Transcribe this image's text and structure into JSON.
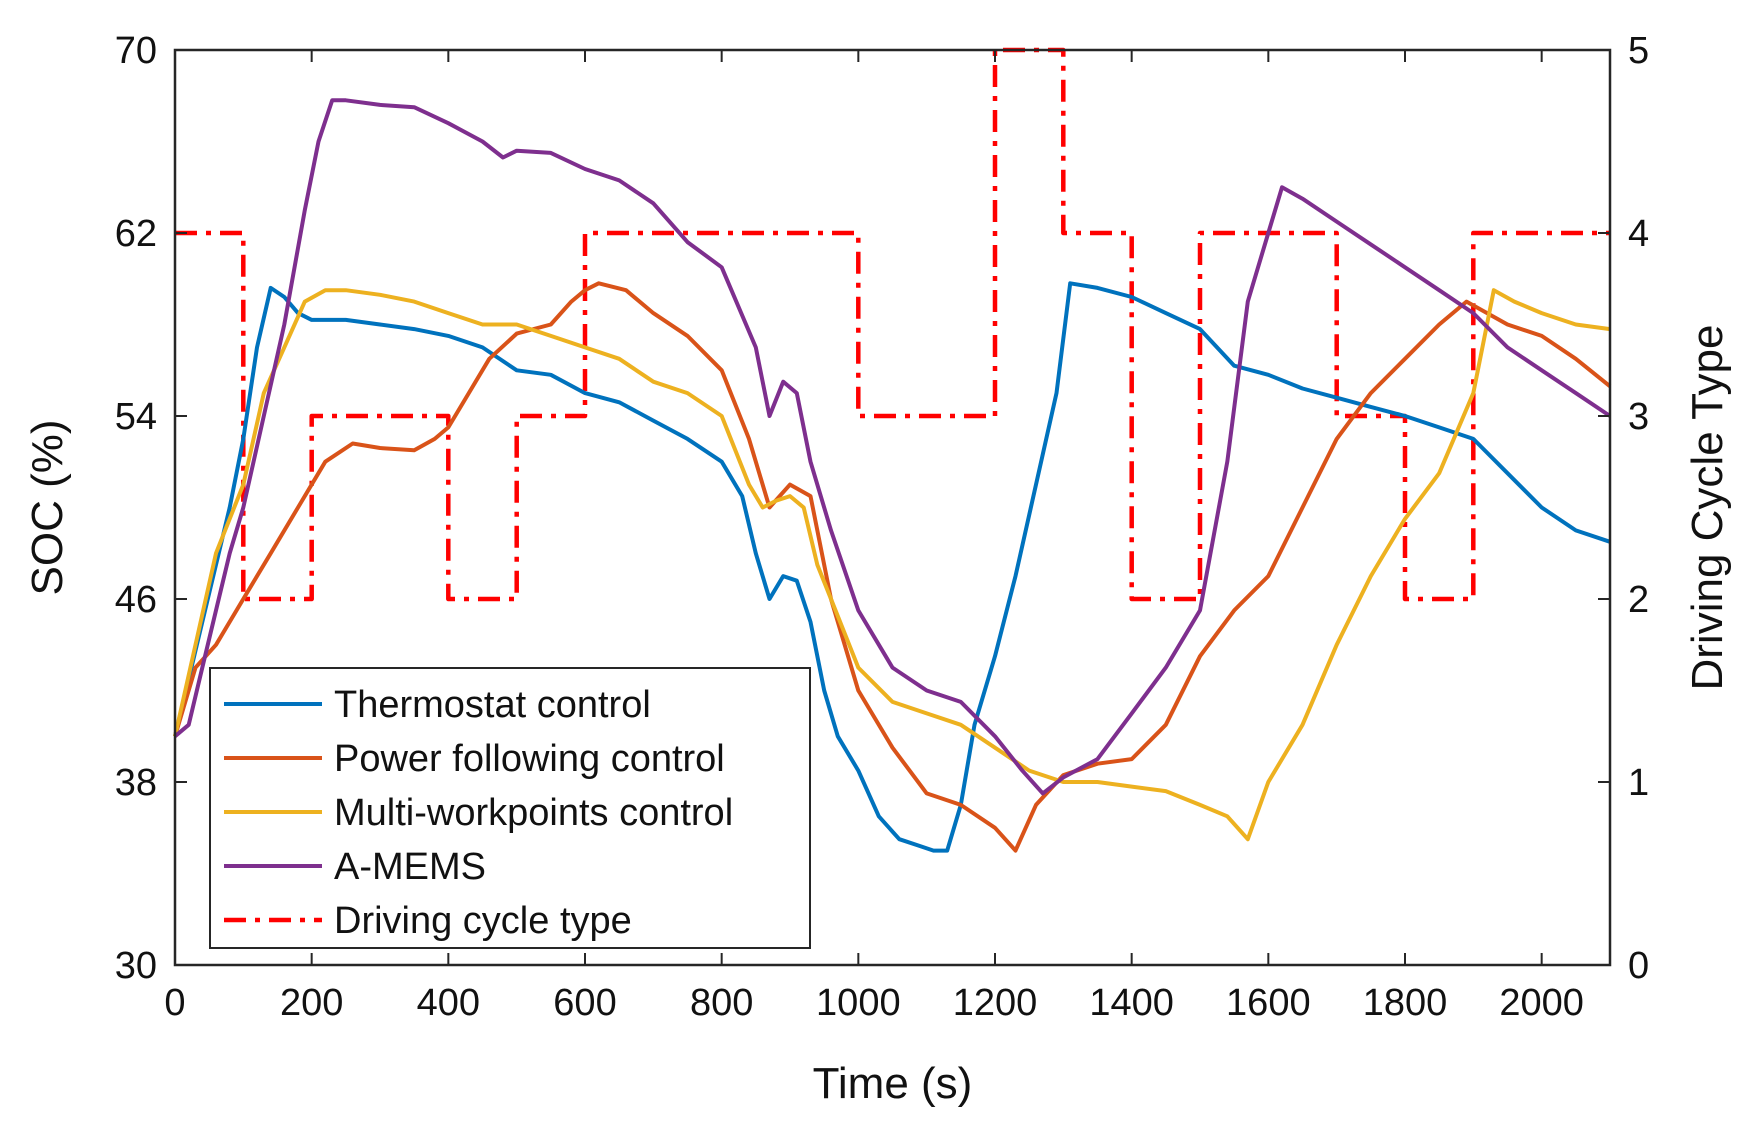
{
  "chart_data": {
    "type": "line",
    "xlabel": "Time (s)",
    "ylabel": "SOC (%)",
    "y2label": "Driving Cycle Type",
    "xlim": [
      0,
      2100
    ],
    "ylim": [
      30,
      70
    ],
    "y2lim": [
      0,
      5
    ],
    "xticks": [
      0,
      200,
      400,
      600,
      800,
      1000,
      1200,
      1400,
      1600,
      1800,
      2000
    ],
    "yticks": [
      30,
      38,
      46,
      54,
      62,
      70
    ],
    "y2ticks": [
      0,
      1,
      2,
      3,
      4,
      5
    ],
    "legend_position": "bottom-left",
    "series": [
      {
        "name": "Thermostat control",
        "axis": "left",
        "color": "#0072BD",
        "style": "solid",
        "x": [
          0,
          20,
          40,
          60,
          80,
          100,
          120,
          140,
          160,
          180,
          200,
          250,
          300,
          350,
          400,
          450,
          500,
          550,
          600,
          650,
          700,
          750,
          800,
          830,
          850,
          870,
          890,
          910,
          930,
          950,
          970,
          1000,
          1030,
          1060,
          1090,
          1110,
          1130,
          1150,
          1170,
          1200,
          1230,
          1260,
          1290,
          1310,
          1350,
          1400,
          1450,
          1500,
          1550,
          1600,
          1650,
          1700,
          1750,
          1800,
          1850,
          1900,
          1950,
          2000,
          2050,
          2100
        ],
        "y": [
          40,
          42.5,
          45,
          47.5,
          50,
          53,
          57,
          59.6,
          59.2,
          58.5,
          58.2,
          58.2,
          58.0,
          57.8,
          57.5,
          57.0,
          56.0,
          55.8,
          55.0,
          54.6,
          53.8,
          53.0,
          52.0,
          50.5,
          48.0,
          46.0,
          47.0,
          46.8,
          45.0,
          42.0,
          40.0,
          38.5,
          36.5,
          35.5,
          35.2,
          35.0,
          35.0,
          37.0,
          40.5,
          43.5,
          47.0,
          51.0,
          55.0,
          59.8,
          59.6,
          59.2,
          58.5,
          57.8,
          56.2,
          55.8,
          55.2,
          54.8,
          54.4,
          54.0,
          53.5,
          53.0,
          51.5,
          50.0,
          49.0,
          48.5
        ]
      },
      {
        "name": "Power following control",
        "axis": "left",
        "color": "#D95319",
        "style": "solid",
        "x": [
          0,
          30,
          60,
          100,
          140,
          180,
          220,
          260,
          300,
          350,
          380,
          400,
          430,
          460,
          500,
          550,
          580,
          600,
          620,
          660,
          700,
          750,
          800,
          840,
          870,
          900,
          930,
          960,
          1000,
          1050,
          1100,
          1150,
          1200,
          1230,
          1260,
          1300,
          1350,
          1400,
          1450,
          1500,
          1550,
          1600,
          1650,
          1700,
          1750,
          1800,
          1850,
          1890,
          1950,
          2000,
          2050,
          2100
        ],
        "y": [
          40,
          43,
          44,
          46,
          48,
          50,
          52.0,
          52.8,
          52.6,
          52.5,
          53.0,
          53.5,
          55.0,
          56.5,
          57.6,
          58.0,
          59.0,
          59.5,
          59.8,
          59.5,
          58.5,
          57.5,
          56.0,
          53.0,
          50.0,
          51.0,
          50.5,
          46.0,
          42.0,
          39.5,
          37.5,
          37.0,
          36.0,
          35.0,
          37.0,
          38.3,
          38.8,
          39.0,
          40.5,
          43.5,
          45.5,
          47.0,
          50.0,
          53.0,
          55.0,
          56.5,
          58.0,
          59.0,
          58.0,
          57.5,
          56.5,
          55.3
        ]
      },
      {
        "name": "Multi-workpoints control",
        "axis": "left",
        "color": "#EDB120",
        "style": "solid",
        "x": [
          0,
          30,
          60,
          100,
          130,
          160,
          190,
          220,
          250,
          300,
          350,
          400,
          450,
          500,
          550,
          600,
          650,
          700,
          750,
          800,
          840,
          860,
          880,
          900,
          920,
          940,
          960,
          1000,
          1050,
          1100,
          1150,
          1200,
          1250,
          1300,
          1350,
          1400,
          1450,
          1500,
          1540,
          1570,
          1600,
          1650,
          1700,
          1750,
          1800,
          1850,
          1900,
          1930,
          1960,
          2000,
          2050,
          2100
        ],
        "y": [
          40,
          44,
          48,
          51,
          55,
          57,
          59.0,
          59.5,
          59.5,
          59.3,
          59.0,
          58.5,
          58.0,
          58.0,
          57.5,
          57.0,
          56.5,
          55.5,
          55.0,
          54.0,
          51.0,
          50.0,
          50.3,
          50.5,
          50.0,
          47.5,
          46.0,
          43.0,
          41.5,
          41.0,
          40.5,
          39.5,
          38.5,
          38.0,
          38.0,
          37.8,
          37.6,
          37.0,
          36.5,
          35.5,
          38.0,
          40.5,
          44.0,
          47.0,
          49.5,
          51.5,
          55.0,
          59.5,
          59.0,
          58.5,
          58.0,
          57.8
        ]
      },
      {
        "name": "A-MEMS",
        "axis": "left",
        "color": "#7E2F8E",
        "style": "solid",
        "x": [
          0,
          20,
          40,
          60,
          80,
          100,
          130,
          160,
          190,
          210,
          230,
          250,
          300,
          350,
          400,
          450,
          480,
          500,
          550,
          600,
          650,
          700,
          750,
          800,
          850,
          870,
          890,
          910,
          930,
          960,
          1000,
          1050,
          1100,
          1150,
          1200,
          1240,
          1270,
          1300,
          1350,
          1400,
          1450,
          1500,
          1540,
          1570,
          1600,
          1620,
          1650,
          1700,
          1750,
          1800,
          1850,
          1900,
          1950,
          2000,
          2050,
          2100
        ],
        "y": [
          40,
          40.5,
          43,
          45.5,
          48,
          50,
          54,
          58,
          63,
          66,
          67.8,
          67.8,
          67.6,
          67.5,
          66.8,
          66.0,
          65.3,
          65.6,
          65.5,
          64.8,
          64.3,
          63.3,
          61.6,
          60.5,
          57.0,
          54.0,
          55.5,
          55.0,
          52.0,
          49.0,
          45.5,
          43.0,
          42.0,
          41.5,
          40.0,
          38.5,
          37.5,
          38.2,
          39.0,
          41.0,
          43.0,
          45.5,
          52.0,
          59.0,
          62.0,
          64.0,
          63.5,
          62.5,
          61.5,
          60.5,
          59.5,
          58.5,
          57.0,
          56.0,
          55.0,
          54.0
        ]
      },
      {
        "name": "Driving cycle type",
        "axis": "right",
        "color": "#FF0000",
        "style": "dashdot",
        "x": [
          0,
          100,
          100,
          200,
          200,
          400,
          400,
          500,
          500,
          600,
          600,
          1000,
          1000,
          1200,
          1200,
          1300,
          1300,
          1400,
          1400,
          1500,
          1500,
          1700,
          1700,
          1800,
          1800,
          1900,
          1900,
          2100
        ],
        "y": [
          4,
          4,
          2,
          2,
          3,
          3,
          2,
          2,
          3,
          3,
          4,
          4,
          3,
          3,
          5,
          5,
          4,
          4,
          2,
          2,
          4,
          4,
          3,
          3,
          2,
          2,
          4,
          4
        ]
      }
    ]
  }
}
